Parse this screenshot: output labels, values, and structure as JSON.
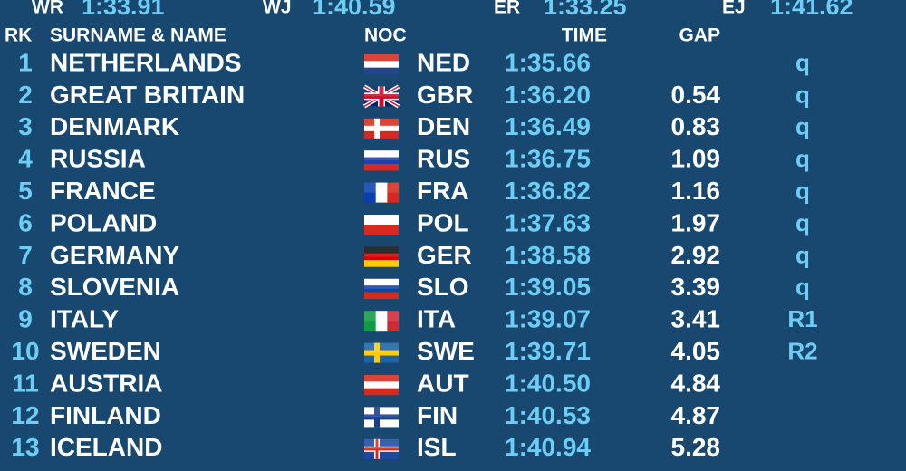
{
  "records": [
    {
      "label": "WR",
      "time": "1:33.91"
    },
    {
      "label": "WJ",
      "time": "1:40.59"
    },
    {
      "label": "ER",
      "time": "1:33.25"
    },
    {
      "label": "EJ",
      "time": "1:41.62"
    }
  ],
  "columns": {
    "rank": "RK",
    "name": "SURNAME & NAME",
    "noc": "NOC",
    "time": "TIME",
    "gap": "GAP"
  },
  "rows": [
    {
      "rank": "1",
      "name": "NETHERLANDS",
      "noc": "NED",
      "time": "1:35.66",
      "qualification": "q"
    },
    {
      "rank": "2",
      "name": "GREAT BRITAIN",
      "noc": "GBR",
      "time": "1:36.20",
      "gap": "0.54",
      "qualification": "q"
    },
    {
      "rank": "3",
      "name": "DENMARK",
      "noc": "DEN",
      "time": "1:36.49",
      "gap": "0.83",
      "qualification": "q"
    },
    {
      "rank": "4",
      "name": "RUSSIA",
      "noc": "RUS",
      "time": "1:36.75",
      "gap": "1.09",
      "qualification": "q"
    },
    {
      "rank": "5",
      "name": "FRANCE",
      "noc": "FRA",
      "time": "1:36.82",
      "gap": "1.16",
      "qualification": "q"
    },
    {
      "rank": "6",
      "name": "POLAND",
      "noc": "POL",
      "time": "1:37.63",
      "gap": "1.97",
      "qualification": "q"
    },
    {
      "rank": "7",
      "name": "GERMANY",
      "noc": "GER",
      "time": "1:38.58",
      "gap": "2.92",
      "qualification": "q"
    },
    {
      "rank": "8",
      "name": "SLOVENIA",
      "noc": "SLO",
      "time": "1:39.05",
      "gap": "3.39",
      "qualification": "q"
    },
    {
      "rank": "9",
      "name": "ITALY",
      "noc": "ITA",
      "time": "1:39.07",
      "gap": "3.41",
      "qualification": "R1"
    },
    {
      "rank": "10",
      "name": "SWEDEN",
      "noc": "SWE",
      "time": "1:39.71",
      "gap": "4.05",
      "qualification": "R2"
    },
    {
      "rank": "11",
      "name": "AUSTRIA",
      "noc": "AUT",
      "time": "1:40.50",
      "gap": "4.84"
    },
    {
      "rank": "12",
      "name": "FINLAND",
      "noc": "FIN",
      "time": "1:40.53",
      "gap": "4.87"
    },
    {
      "rank": "13",
      "name": "ICELAND",
      "noc": "ISL",
      "time": "1:40.94",
      "gap": "5.28"
    }
  ]
}
